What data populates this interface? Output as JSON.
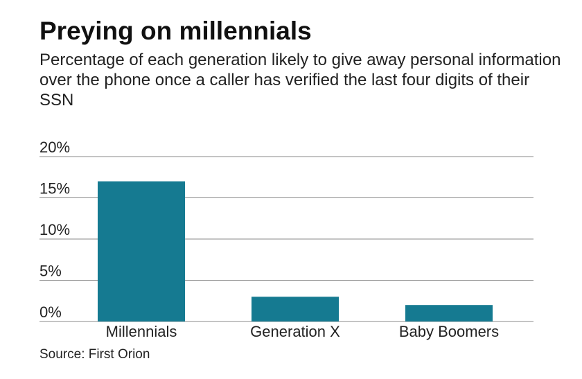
{
  "header": {
    "title": "Preying on millennials",
    "subtitle": "Percentage of each generation likely to give away personal information over the phone once a caller has verified the last four digits of their SSN"
  },
  "footer": {
    "source": "Source: First Orion"
  },
  "colors": {
    "bar": "#157a91",
    "grid": "#8a8a8a",
    "axis": "#8a8a8a"
  },
  "chart_data": {
    "type": "bar",
    "title": "Preying on millennials",
    "subtitle": "Percentage of each generation likely to give away personal information over the phone once a caller has verified the last four digits of their SSN",
    "categories": [
      "Millennials",
      "Generation X",
      "Baby Boomers"
    ],
    "values": [
      17,
      3,
      2
    ],
    "unit": "%",
    "ylim": [
      0,
      20
    ],
    "yticks": [
      0,
      5,
      10,
      15,
      20
    ],
    "ytick_labels": [
      "0%",
      "5%",
      "10%",
      "15%",
      "20%"
    ],
    "xlabel": "",
    "ylabel": "",
    "grid": true,
    "legend": "none"
  }
}
